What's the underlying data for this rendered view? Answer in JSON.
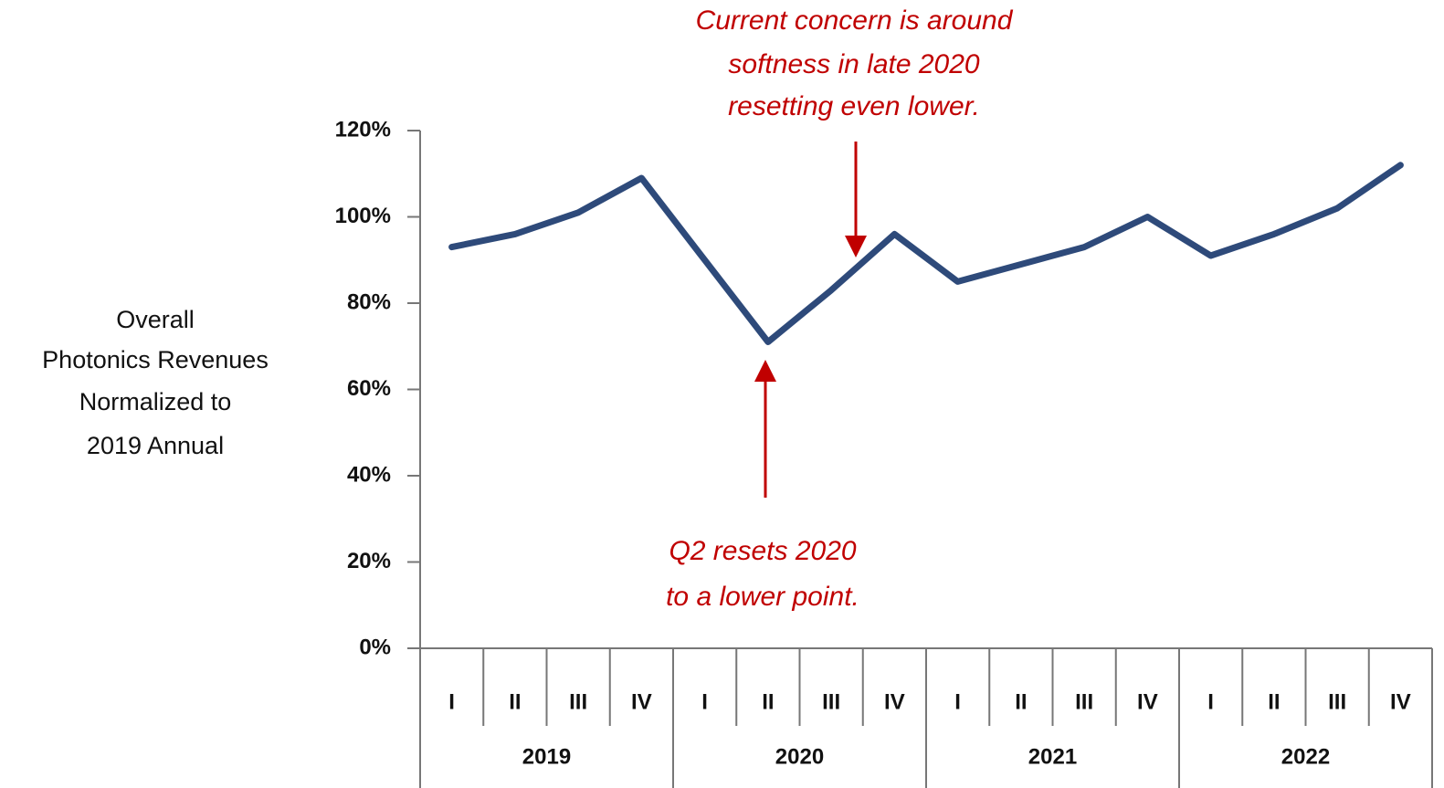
{
  "chart_data": {
    "type": "line",
    "y_label": [
      "Overall",
      "Photonics Revenues",
      "Normalized to",
      "2019 Annual"
    ],
    "categories": [
      "I",
      "II",
      "III",
      "IV",
      "I",
      "II",
      "III",
      "IV",
      "I",
      "II",
      "III",
      "IV",
      "I",
      "II",
      "III",
      "IV"
    ],
    "groups": [
      "2019",
      "2020",
      "2021",
      "2022"
    ],
    "series": [
      {
        "color": "#2e4a7a",
        "values": [
          93,
          96,
          101,
          109,
          90,
          71,
          83,
          96,
          85,
          89,
          93,
          100,
          91,
          96,
          102,
          112
        ]
      }
    ],
    "ylim": [
      0,
      120
    ],
    "yticks": [
      {
        "value": 0,
        "label": "0%"
      },
      {
        "value": 20,
        "label": "20%"
      },
      {
        "value": 40,
        "label": "40%"
      },
      {
        "value": 60,
        "label": "60%"
      },
      {
        "value": 80,
        "label": "80%"
      },
      {
        "value": 100,
        "label": "100%"
      },
      {
        "value": 120,
        "label": "120%"
      }
    ],
    "grid": false,
    "annotations": [
      {
        "lines": [
          "Current concern is around",
          "softness in late 2020",
          "resetting even lower."
        ],
        "color": "#c00000"
      },
      {
        "lines": [
          "Q2 resets 2020",
          "to a lower point."
        ],
        "color": "#c00000"
      }
    ]
  }
}
